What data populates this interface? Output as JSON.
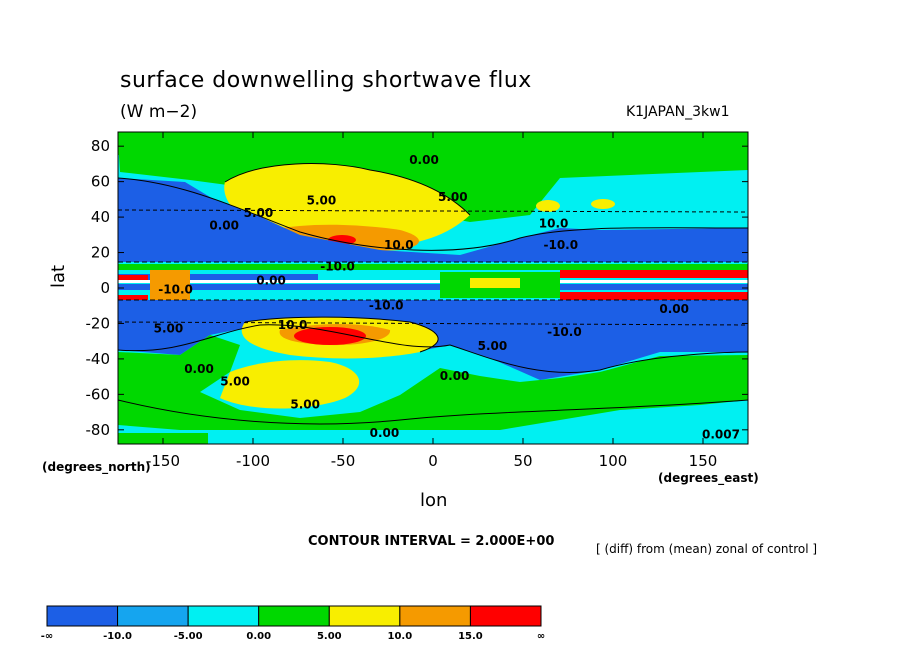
{
  "chart_data": {
    "type": "contour_map",
    "title": "surface downwelling shortwave flux",
    "units_label": "(W m−2)",
    "dataset_label": "K1JAPAN_3kw1",
    "xlabel": "lon",
    "ylabel": "lat",
    "x_units": "(degrees_east)",
    "y_units": "(degrees_north)",
    "xlim": [
      -175,
      175
    ],
    "ylim": [
      -88,
      88
    ],
    "x_ticks": [
      -150,
      -100,
      -50,
      0,
      50,
      100,
      150
    ],
    "y_ticks": [
      80,
      60,
      40,
      20,
      0,
      -20,
      -40,
      -60,
      -80
    ],
    "contour_interval_text": "CONTOUR INTERVAL = 2.000E+00",
    "note": "[ (diff) from (mean) zonal of control ]",
    "legend": {
      "labels": [
        "-∞",
        "-10.0",
        "-5.00",
        "0.00",
        "5.00",
        "10.0",
        "15.0",
        "∞"
      ],
      "colors": [
        "#1c5fe6",
        "#15a5ef",
        "#00f0f2",
        "#00d800",
        "#f8ee00",
        "#f59a00",
        "#ff0000"
      ]
    },
    "contour_labels": [
      {
        "text": "0.00",
        "lon": -5,
        "lat": 70
      },
      {
        "text": "5.00",
        "lon": -97,
        "lat": 40
      },
      {
        "text": "0.00",
        "lon": -116,
        "lat": 33
      },
      {
        "text": "5.00",
        "lon": -62,
        "lat": 47
      },
      {
        "text": "10.0",
        "lon": -19,
        "lat": 22
      },
      {
        "text": "-10.0",
        "lon": -53,
        "lat": 10
      },
      {
        "text": "0.00",
        "lon": -90,
        "lat": 2
      },
      {
        "text": "-10.0",
        "lon": -143,
        "lat": -3
      },
      {
        "text": "-10.0",
        "lon": -26,
        "lat": -12
      },
      {
        "text": "5.00",
        "lon": -147,
        "lat": -25
      },
      {
        "text": "10.0",
        "lon": -78,
        "lat": -23
      },
      {
        "text": "0.00",
        "lon": -130,
        "lat": -48
      },
      {
        "text": "5.00",
        "lon": -110,
        "lat": -55
      },
      {
        "text": "5.00",
        "lon": -71,
        "lat": -68
      },
      {
        "text": "0.00",
        "lon": 12,
        "lat": -52
      },
      {
        "text": "5.00",
        "lon": 33,
        "lat": -35
      },
      {
        "text": "0.00",
        "lon": -27,
        "lat": -84
      },
      {
        "text": "5.00",
        "lon": 11,
        "lat": 49
      },
      {
        "text": "10.0",
        "lon": 67,
        "lat": 34
      },
      {
        "text": "-10.0",
        "lon": 71,
        "lat": 22
      },
      {
        "text": "-10.0",
        "lon": 73,
        "lat": -27
      },
      {
        "text": "0.00",
        "lon": 134,
        "lat": -14
      },
      {
        "text": "0.007",
        "lon": 160,
        "lat": -85
      }
    ]
  }
}
